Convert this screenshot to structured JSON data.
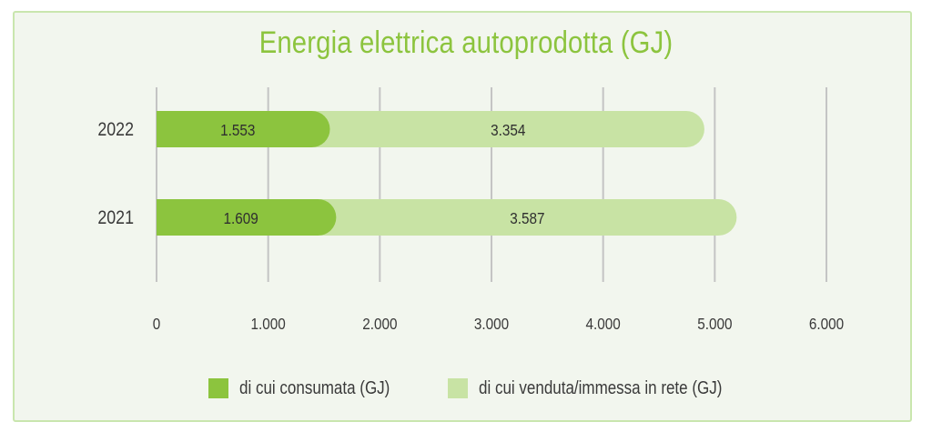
{
  "chart_data": {
    "type": "bar",
    "orientation": "horizontal",
    "stacked": true,
    "title": "Energia elettrica autoprodotta (GJ)",
    "categories": [
      "2022",
      "2021"
    ],
    "series": [
      {
        "name": "di cui consumata (GJ)",
        "values": [
          1553,
          1609
        ],
        "labels": [
          "1.553",
          "1.609"
        ],
        "color": "#8cc43e"
      },
      {
        "name": "di cui venduta/immessa in rete (GJ)",
        "values": [
          3354,
          3587
        ],
        "labels": [
          "3.354",
          "3.587"
        ],
        "color": "#c8e3a4"
      }
    ],
    "xlim": [
      0,
      6000
    ],
    "xticks": [
      {
        "value": 0,
        "label": "0"
      },
      {
        "value": 1000,
        "label": "1.000"
      },
      {
        "value": 2000,
        "label": "2.000"
      },
      {
        "value": 3000,
        "label": "3.000"
      },
      {
        "value": 4000,
        "label": "4.000"
      },
      {
        "value": 5000,
        "label": "5.000"
      },
      {
        "value": 6000,
        "label": "6.000"
      }
    ],
    "grid": true,
    "legend_position": "bottom"
  },
  "colors": {
    "background": "#f2f6ee",
    "border": "#c9e6ae",
    "title": "#8cc43e",
    "grid": "#c4c4c4",
    "text": "#3a3a3a"
  }
}
